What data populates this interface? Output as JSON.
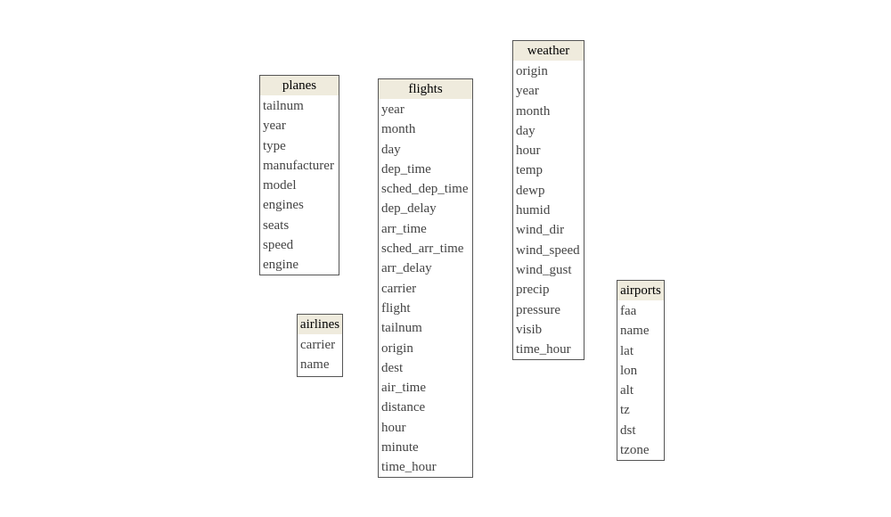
{
  "tables": {
    "planes": {
      "name": "planes",
      "fields": [
        "tailnum",
        "year",
        "type",
        "manufacturer",
        "model",
        "engines",
        "seats",
        "speed",
        "engine"
      ]
    },
    "airlines": {
      "name": "airlines",
      "fields": [
        "carrier",
        "name"
      ]
    },
    "flights": {
      "name": "flights",
      "fields": [
        "year",
        "month",
        "day",
        "dep_time",
        "sched_dep_time",
        "dep_delay",
        "arr_time",
        "sched_arr_time",
        "arr_delay",
        "carrier",
        "flight",
        "tailnum",
        "origin",
        "dest",
        "air_time",
        "distance",
        "hour",
        "minute",
        "time_hour"
      ]
    },
    "weather": {
      "name": "weather",
      "fields": [
        "origin",
        "year",
        "month",
        "day",
        "hour",
        "temp",
        "dewp",
        "humid",
        "wind_dir",
        "wind_speed",
        "wind_gust",
        "precip",
        "pressure",
        "visib",
        "time_hour"
      ]
    },
    "airports": {
      "name": "airports",
      "fields": [
        "faa",
        "name",
        "lat",
        "lon",
        "alt",
        "tz",
        "dst",
        "tzone"
      ]
    }
  },
  "colors": {
    "header_background": "#efebdd",
    "border": "#555555",
    "field_text": "#444444"
  }
}
